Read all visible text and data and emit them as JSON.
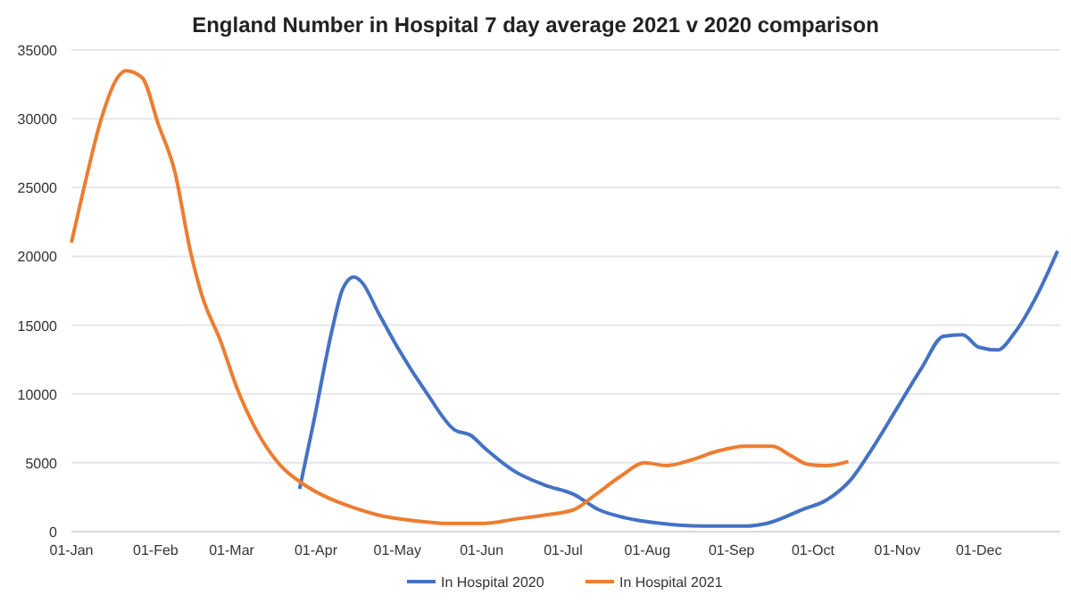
{
  "chart_data": {
    "type": "line",
    "title": "England Number in Hospital 7 day average 2021 v 2020 comparison",
    "xlim": [
      "--01-01",
      "--12-31"
    ],
    "xticks": [
      {
        "value": "--01-01",
        "label": "01-Jan"
      },
      {
        "value": "--02-01",
        "label": "01-Feb"
      },
      {
        "value": "--03-01",
        "label": "01-Mar"
      },
      {
        "value": "--04-01",
        "label": "01-Apr"
      },
      {
        "value": "--05-01",
        "label": "01-May"
      },
      {
        "value": "--06-01",
        "label": "01-Jun"
      },
      {
        "value": "--07-01",
        "label": "01-Jul"
      },
      {
        "value": "--08-01",
        "label": "01-Aug"
      },
      {
        "value": "--09-01",
        "label": "01-Sep"
      },
      {
        "value": "--10-01",
        "label": "01-Oct"
      },
      {
        "value": "--11-01",
        "label": "01-Nov"
      },
      {
        "value": "--12-01",
        "label": "01-Dec"
      }
    ],
    "ylim": [
      0,
      35000
    ],
    "yticks": [
      0,
      5000,
      10000,
      15000,
      20000,
      25000,
      30000,
      35000
    ],
    "grid": "y",
    "legend": "bottom",
    "marker": "none",
    "line_style": "solid",
    "series": [
      {
        "name": "In Hospital 2020",
        "color": "#4472c4",
        "x": [
          "--03-26",
          "--03-31",
          "--04-07",
          "--04-11",
          "--04-15",
          "--04-18",
          "--04-24",
          "--05-01",
          "--05-12",
          "--05-22",
          "--05-28",
          "--06-02",
          "--06-13",
          "--06-24",
          "--07-05",
          "--07-14",
          "--07-24",
          "--08-06",
          "--08-22",
          "--09-06",
          "--09-14",
          "--09-27",
          "--10-06",
          "--10-15",
          "--10-23",
          "--11-01",
          "--11-10",
          "--11-18",
          "--11-25",
          "--12-01",
          "--12-08",
          "--12-14",
          "--12-23",
          "--12-30"
        ],
        "values": [
          3100,
          7800,
          14700,
          17700,
          18500,
          18100,
          15900,
          13400,
          10000,
          7400,
          7000,
          6100,
          4400,
          3400,
          2700,
          1600,
          1000,
          600,
          400,
          400,
          600,
          1600,
          2300,
          3800,
          6100,
          9000,
          11900,
          14200,
          14300,
          13400,
          13200,
          14400,
          17400,
          20400
        ]
      },
      {
        "name": "In Hospital 2021",
        "color": "#ed7d31",
        "x": [
          "--01-01",
          "--01-06",
          "--01-12",
          "--01-18",
          "--01-21",
          "--01-27",
          "--02-02",
          "--02-08",
          "--02-14",
          "--02-18",
          "--02-25",
          "--03-03",
          "--03-10",
          "--03-19",
          "--03-27",
          "--04-05",
          "--04-14",
          "--04-24",
          "--05-07",
          "--05-20",
          "--06-02",
          "--06-13",
          "--06-24",
          "--07-05",
          "--07-13",
          "--07-22",
          "--07-31",
          "--08-08",
          "--08-17",
          "--08-26",
          "--09-06",
          "--09-16",
          "--09-23",
          "--09-29",
          "--10-06",
          "--10-14"
        ],
        "values": [
          21000,
          25300,
          30000,
          33000,
          33500,
          33000,
          29600,
          26200,
          20200,
          17200,
          13800,
          10400,
          7400,
          4800,
          3500,
          2500,
          1800,
          1200,
          800,
          600,
          600,
          900,
          1200,
          1600,
          2700,
          4000,
          5000,
          4800,
          5200,
          5800,
          6200,
          6200,
          5500,
          4900,
          4800,
          5100
        ]
      }
    ]
  }
}
